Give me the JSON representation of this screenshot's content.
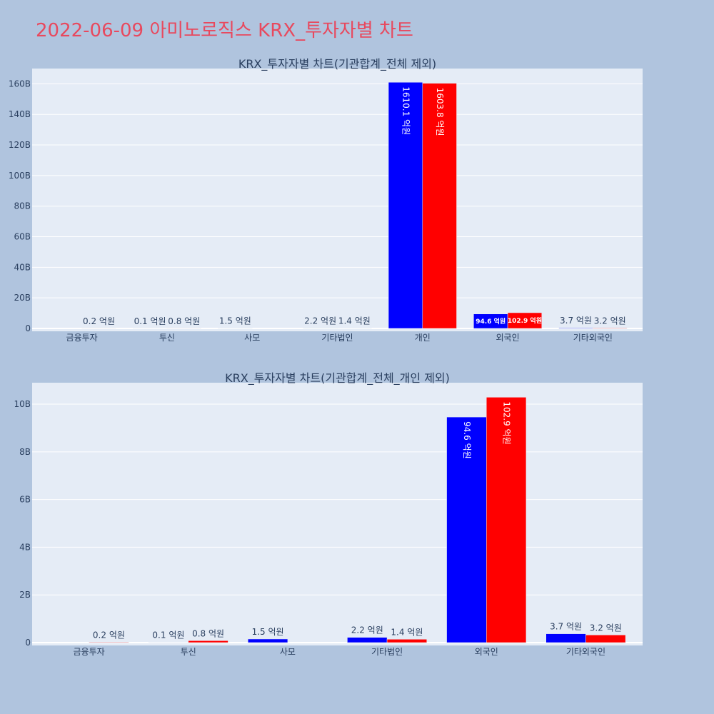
{
  "title": "2022-06-09 아미노로직스 KRX_투자자별 차트",
  "colors": {
    "buy": "#0000ff",
    "sell": "#ff0000",
    "plot_bg": "#e5ecf6",
    "page_bg": "#b0c4de",
    "title": "#e8495e"
  },
  "chart_data": [
    {
      "type": "bar",
      "title": "KRX_투자자별 차트(기관합계_전체 제외)",
      "categories": [
        "금융투자",
        "투신",
        "사모",
        "기타법인",
        "개인",
        "외국인",
        "기타외국인"
      ],
      "series": [
        {
          "values": [
            0,
            0.01,
            0.15,
            0.22,
            161.01,
            9.46,
            0.37
          ],
          "labels": [
            "",
            "0.1 억원",
            "1.5 억원",
            "2.2 억원",
            "1610.1 억원",
            "94.6 억원",
            "3.7 억원"
          ]
        },
        {
          "values": [
            0.02,
            0.08,
            0,
            0.14,
            160.38,
            10.29,
            0.32
          ],
          "labels": [
            "0.2 억원",
            "0.8 억원",
            "",
            "1.4 억원",
            "1603.8 억원",
            "102.9 억원",
            "3.2 억원"
          ]
        }
      ],
      "yticks": [
        "0",
        "20B",
        "40B",
        "60B",
        "80B",
        "100B",
        "120B",
        "140B",
        "160B"
      ],
      "ylim": [
        0,
        170
      ],
      "grid": true
    },
    {
      "type": "bar",
      "title": "KRX_투자자별 차트(기관합계_전체_개인 제외)",
      "categories": [
        "금융투자",
        "투신",
        "사모",
        "기타법인",
        "외국인",
        "기타외국인"
      ],
      "series": [
        {
          "values": [
            0,
            0.01,
            0.15,
            0.22,
            9.46,
            0.37
          ],
          "labels": [
            "",
            "0.1 억원",
            "1.5 억원",
            "2.2 억원",
            "94.6 억원",
            "3.7 억원"
          ]
        },
        {
          "values": [
            0.02,
            0.08,
            0,
            0.14,
            10.29,
            0.32
          ],
          "labels": [
            "0.2 억원",
            "0.8 억원",
            "",
            "1.4 억원",
            "102.9 억원",
            "3.2 억원"
          ]
        }
      ],
      "yticks": [
        "0",
        "2B",
        "4B",
        "6B",
        "8B",
        "10B"
      ],
      "ylim": [
        0,
        10.9
      ],
      "grid": true
    }
  ]
}
